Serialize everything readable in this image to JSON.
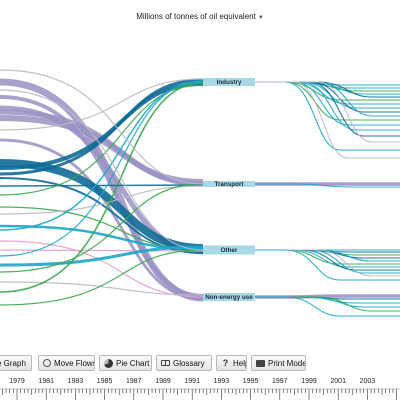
{
  "header": {
    "unit_label": "Millions of tonnes of oil equivalent"
  },
  "sectors": [
    {
      "name": "Industry"
    },
    {
      "name": "Transport"
    },
    {
      "name": "Other"
    },
    {
      "name": "Non-energy use"
    }
  ],
  "colors": {
    "node_fill": "#a7d9e6",
    "lilac": "#9b92c4",
    "dark_blue": "#0f6a96",
    "teal": "#1aa7c7",
    "green": "#39a84a",
    "grey": "#b9b9c6",
    "pink": "#e79ccb"
  },
  "toolbar": {
    "buttons": [
      {
        "label": "e Graph",
        "icon": "none"
      },
      {
        "label": "Move Flows",
        "icon": "circle-icon"
      },
      {
        "label": "Pie Chart",
        "icon": "pie-chart-icon"
      },
      {
        "label": "Glossary",
        "icon": "book-icon"
      },
      {
        "label": "Help",
        "icon": "help-icon"
      },
      {
        "label": "Print Mode",
        "icon": "printer-icon"
      }
    ]
  },
  "timeline": {
    "years": [
      "1979",
      "1981",
      "1983",
      "1985",
      "1987",
      "1989",
      "1991",
      "1993",
      "1995",
      "1997",
      "1999",
      "2001",
      "2003"
    ]
  }
}
